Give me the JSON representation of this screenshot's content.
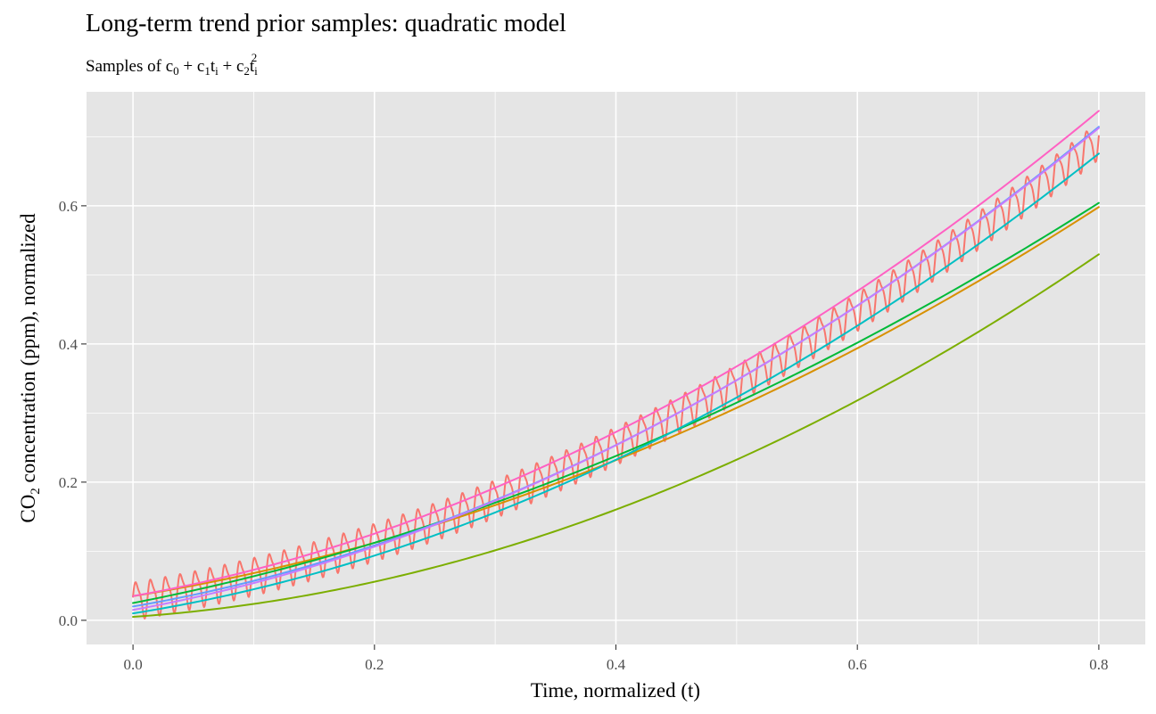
{
  "chart_data": {
    "type": "line",
    "title": "Long-term trend prior samples: quadratic model",
    "subtitle": {
      "prefix": "Samples of ",
      "c0": "c",
      "c0_sub": "0",
      "plus1": " + ",
      "c1": "c",
      "c1_sub": "1",
      "t1": "t",
      "t1_sub": "i",
      "plus2": " + ",
      "c2": "c",
      "c2_sub": "2",
      "t2": "t",
      "t2_sub": "i",
      "t2_sup": "2"
    },
    "xlabel": "Time, normalized (t)",
    "ylabel": {
      "co": "CO",
      "sub": "2",
      "rest": " concentration (ppm), normalized"
    },
    "xlim": [
      -0.0385,
      0.8385
    ],
    "ylim": [
      -0.035,
      0.765
    ],
    "x_ticks": [
      0.0,
      0.2,
      0.4,
      0.6,
      0.8
    ],
    "x_tick_labels": [
      "0.0",
      "0.2",
      "0.4",
      "0.6",
      "0.8"
    ],
    "y_ticks": [
      0.0,
      0.2,
      0.4,
      0.6
    ],
    "y_tick_labels": [
      "0.0",
      "0.2",
      "0.4",
      "0.6"
    ],
    "grid": true,
    "legend": "none",
    "observed": {
      "color": "#F8766D",
      "trend": {
        "c0": 0.03,
        "c1": 0.29,
        "c2": 0.68
      },
      "seasonal_amplitude": 0.025,
      "cycles": 65,
      "x_range": [
        0.0,
        0.8
      ]
    },
    "samples": [
      {
        "color": "#D89000",
        "c0": 0.035,
        "c1": 0.28,
        "c2": 0.53
      },
      {
        "color": "#7CAE00",
        "c0": 0.005,
        "c1": 0.12,
        "c2": 0.67
      },
      {
        "color": "#00BA38",
        "c0": 0.025,
        "c1": 0.34,
        "c2": 0.48
      },
      {
        "color": "#00BFC4",
        "c0": 0.01,
        "c1": 0.28,
        "c2": 0.69
      },
      {
        "color": "#619CFF",
        "c0": 0.02,
        "c1": 0.3,
        "c2": 0.71
      },
      {
        "color": "#C77CFF",
        "c0": 0.015,
        "c1": 0.32,
        "c2": 0.69
      },
      {
        "color": "#FF61C3",
        "c0": 0.035,
        "c1": 0.31,
        "c2": 0.71
      }
    ]
  }
}
